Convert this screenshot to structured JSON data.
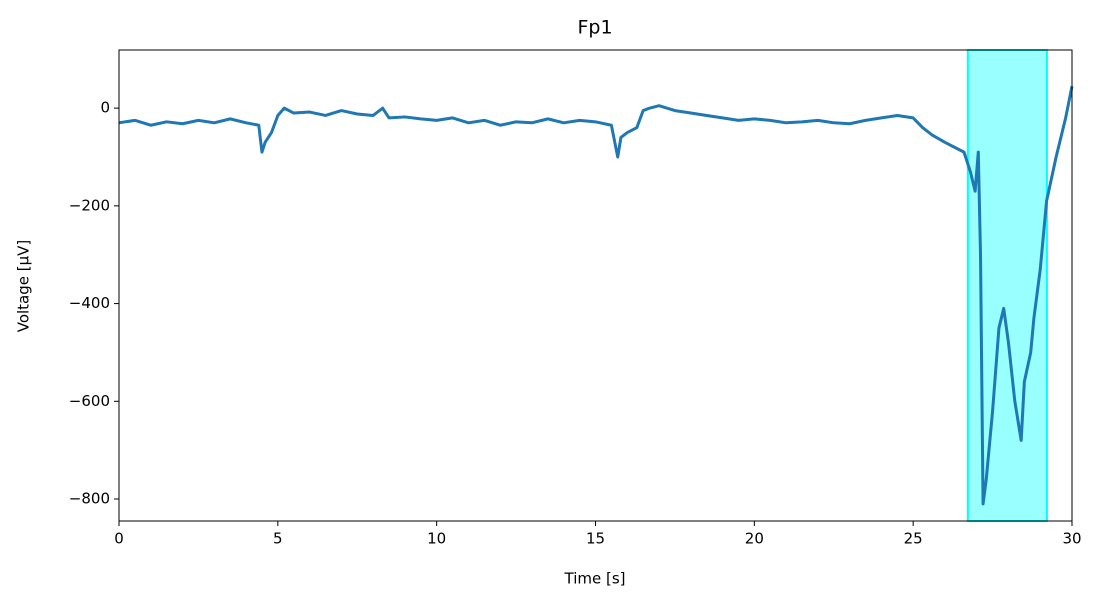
{
  "chart_data": {
    "type": "line",
    "title": "Fp1",
    "x_label": "Time [s]",
    "y_label": "Voltage [µV]",
    "x": [
      0,
      0.5,
      1,
      1.5,
      2,
      2.5,
      3,
      3.5,
      4,
      4.4,
      4.5,
      4.6,
      4.8,
      5,
      5.2,
      5.5,
      6,
      6.5,
      7,
      7.5,
      8,
      8.3,
      8.5,
      9,
      9.5,
      10,
      10.5,
      11,
      11.5,
      12,
      12.5,
      13,
      13.5,
      14,
      14.5,
      15,
      15.5,
      15.7,
      15.8,
      16,
      16.3,
      16.5,
      16.7,
      17,
      17.5,
      18,
      18.5,
      19,
      19.5,
      20,
      20.5,
      21,
      21.5,
      22,
      22.5,
      23,
      23.5,
      24,
      24.5,
      25,
      25.3,
      25.6,
      26,
      26.3,
      26.6,
      26.8,
      26.95,
      27.05,
      27.12,
      27.2,
      27.3,
      27.5,
      27.7,
      27.85,
      28,
      28.2,
      28.4,
      28.5,
      28.7,
      28.8,
      29,
      29.2,
      29.5,
      29.8,
      30
    ],
    "values": [
      -30,
      -25,
      -35,
      -28,
      -32,
      -25,
      -30,
      -22,
      -30,
      -35,
      -90,
      -70,
      -50,
      -15,
      0,
      -10,
      -8,
      -15,
      -5,
      -12,
      -15,
      0,
      -20,
      -18,
      -22,
      -25,
      -20,
      -30,
      -25,
      -35,
      -28,
      -30,
      -22,
      -30,
      -25,
      -28,
      -35,
      -100,
      -60,
      -50,
      -40,
      -5,
      0,
      5,
      -5,
      -10,
      -15,
      -20,
      -25,
      -22,
      -25,
      -30,
      -28,
      -25,
      -30,
      -32,
      -25,
      -20,
      -15,
      -20,
      -40,
      -55,
      -70,
      -80,
      -90,
      -130,
      -170,
      -90,
      -300,
      -810,
      -760,
      -620,
      -450,
      -410,
      -480,
      -600,
      -680,
      -560,
      -500,
      -430,
      -330,
      -190,
      -100,
      -20,
      45
    ],
    "color": "#1f77b4",
    "span": {
      "x": [
        26.72,
        29.21
      ],
      "color": "#00ffff"
    },
    "xlim": [
      0,
      30
    ],
    "xticks": [
      0,
      5,
      10,
      15,
      20,
      25,
      30
    ],
    "ylim": [
      -845,
      119
    ],
    "yticks": [
      {
        "value": -800,
        "label": "−800"
      },
      {
        "value": -600,
        "label": "−600"
      },
      {
        "value": -400,
        "label": "−400"
      },
      {
        "value": -200,
        "label": "−200"
      },
      0
    ]
  }
}
